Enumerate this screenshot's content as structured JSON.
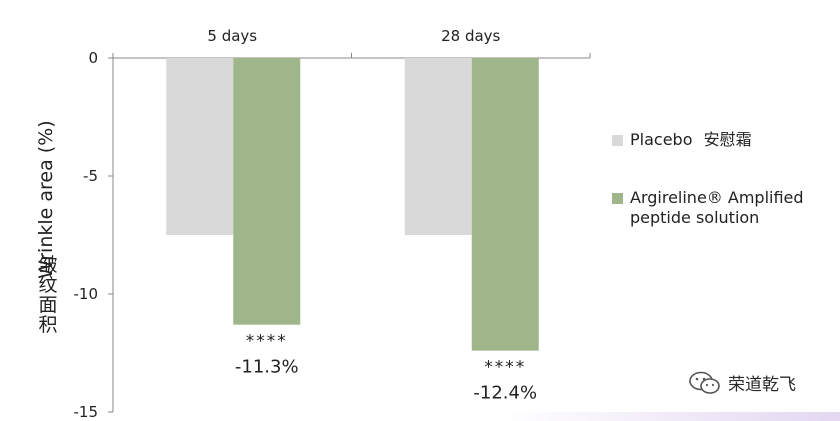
{
  "chart_data": {
    "type": "bar",
    "categories": [
      "5 days",
      "28 days"
    ],
    "series": [
      {
        "name": "Placebo",
        "name_cn": "安慰霜",
        "color": "#d9d9d9",
        "values": [
          -7.5,
          -7.5
        ]
      },
      {
        "name": "Argireline® Amplified peptide solution",
        "color": "#9fb68a",
        "values": [
          -11.3,
          -12.4
        ]
      }
    ],
    "ylabel": "Wrinkle area (%)",
    "ylabel_cn": "皱纹面积",
    "ylim": [
      -15,
      0
    ],
    "yticks": [
      0,
      -5,
      -10,
      -15
    ],
    "ytick_labels": [
      "0",
      "-5",
      "-10",
      "-15"
    ],
    "annotations": [
      {
        "category": "5 days",
        "stars": "****",
        "label": "-11.3%"
      },
      {
        "category": "28 days",
        "stars": "****",
        "label": "-12.4%"
      }
    ],
    "grid": false,
    "legend": "right"
  },
  "legend": {
    "placebo_label": "Placebo",
    "placebo_cn": "安慰霜",
    "argireline_line1": "Argireline® Amplified",
    "argireline_line2": "peptide solution"
  },
  "watermark": {
    "text": "荣道乾飞",
    "icon": "wechat-icon"
  }
}
